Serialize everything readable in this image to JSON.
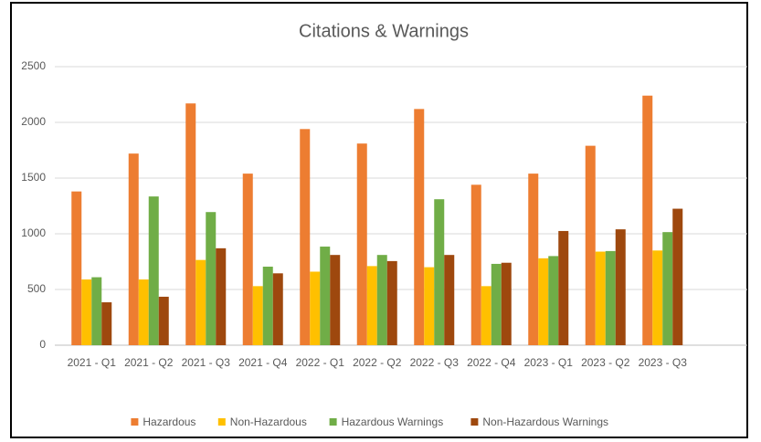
{
  "chart_data": {
    "type": "bar",
    "title": "Citations & Warnings",
    "categories": [
      "2021 - Q1",
      "2021 - Q2",
      "2021 - Q3",
      "2021 - Q4",
      "2022 - Q1",
      "2022 - Q2",
      "2022 - Q3",
      "2022 - Q4",
      "2023 - Q1",
      "2023 - Q2",
      "2023 - Q3"
    ],
    "series": [
      {
        "name": "Hazardous",
        "color": "#ED7D31",
        "values": [
          1380,
          1720,
          2170,
          1540,
          1940,
          1810,
          2120,
          1440,
          1540,
          1790,
          2240
        ]
      },
      {
        "name": "Non-Hazardous",
        "color": "#FFC000",
        "values": [
          590,
          590,
          765,
          530,
          660,
          710,
          700,
          530,
          780,
          840,
          850
        ]
      },
      {
        "name": "Hazardous Warnings",
        "color": "#70AD47",
        "values": [
          610,
          1335,
          1195,
          705,
          885,
          810,
          1310,
          730,
          800,
          845,
          1015
        ]
      },
      {
        "name": "Non-Hazardous Warnings",
        "color": "#9E480E",
        "values": [
          385,
          435,
          870,
          645,
          810,
          755,
          810,
          740,
          1025,
          1040,
          1225
        ]
      }
    ],
    "ylim": [
      0,
      2500
    ],
    "yticks": [
      0,
      500,
      1000,
      1500,
      2000,
      2500
    ],
    "grid": true,
    "legend": "bottom"
  }
}
